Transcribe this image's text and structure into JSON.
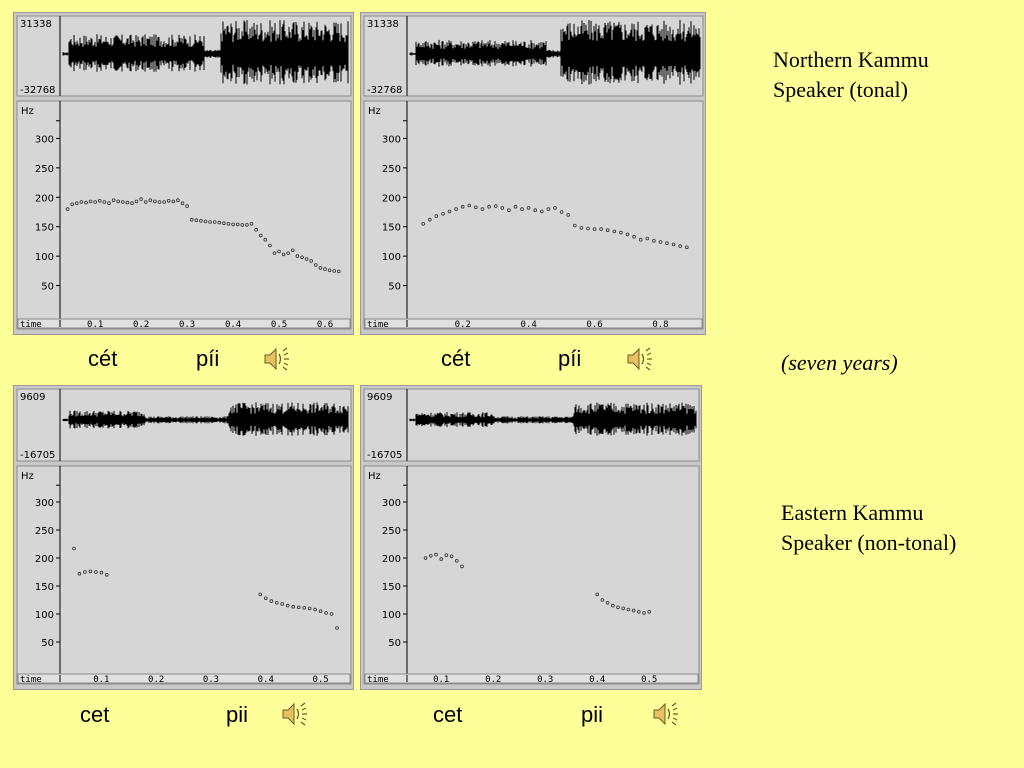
{
  "colors": {
    "background": "#ffff99",
    "panel": "#c8c8c8",
    "plot": "#d6d6d6",
    "trace": "#000000"
  },
  "labels": {
    "northern_line1": "Northern Kammu",
    "northern_line2": "Speaker (tonal)",
    "seven_years": "(seven years)",
    "eastern_line1": "Eastern Kammu",
    "eastern_line2": "Speaker (non-tonal)"
  },
  "captions": {
    "p1_w1": "cét",
    "p1_w2": "píi",
    "p2_w1": "cét",
    "p2_w2": "píi",
    "p3_w1": "cet",
    "p3_w2": "pii",
    "p4_w1": "cet",
    "p4_w2": "pii"
  },
  "icons": {
    "sound": "speaker-sound-icon"
  },
  "chart_data": [
    {
      "type": "scatter",
      "waveform": {
        "max_label": "31338",
        "min_label": "-32768"
      },
      "ylabel": "Hz",
      "xlabel": "time",
      "yticks": [
        300,
        250,
        200,
        150,
        100,
        50
      ],
      "ylim": [
        0,
        350
      ],
      "xticks": [
        0.1,
        0.2,
        0.3,
        0.4,
        0.5,
        0.6
      ],
      "xlim": [
        0.03,
        0.65
      ],
      "series": [
        {
          "x": [
            0.04,
            0.05,
            0.06,
            0.07,
            0.08,
            0.09,
            0.1,
            0.11,
            0.12,
            0.13,
            0.14,
            0.15,
            0.16,
            0.17,
            0.18,
            0.19,
            0.2,
            0.21,
            0.22,
            0.23,
            0.24,
            0.25,
            0.26,
            0.27,
            0.28,
            0.29,
            0.3,
            0.31,
            0.32,
            0.33,
            0.34,
            0.35,
            0.36,
            0.37,
            0.38,
            0.39,
            0.4,
            0.41,
            0.42,
            0.43,
            0.44,
            0.45,
            0.46,
            0.47,
            0.48,
            0.49,
            0.5,
            0.51,
            0.52,
            0.53,
            0.54,
            0.55,
            0.56,
            0.57,
            0.58,
            0.59,
            0.6,
            0.61,
            0.62,
            0.63
          ],
          "y": [
            180,
            188,
            190,
            192,
            191,
            193,
            192,
            194,
            192,
            190,
            195,
            193,
            192,
            191,
            190,
            193,
            197,
            192,
            195,
            193,
            192,
            192,
            194,
            193,
            195,
            190,
            185,
            162,
            161,
            160,
            159,
            158,
            158,
            157,
            156,
            155,
            154,
            154,
            153,
            153,
            155,
            145,
            135,
            128,
            118,
            105,
            108,
            103,
            105,
            110,
            100,
            98,
            95,
            92,
            85,
            80,
            78,
            76,
            75,
            74
          ]
        }
      ]
    },
    {
      "type": "scatter",
      "waveform": {
        "max_label": "31338",
        "min_label": "-32768"
      },
      "ylabel": "Hz",
      "xlabel": "time",
      "yticks": [
        300,
        250,
        200,
        150,
        100,
        50
      ],
      "ylim": [
        0,
        350
      ],
      "xticks": [
        0.2,
        0.4,
        0.6,
        0.8
      ],
      "xlim": [
        0.04,
        0.92
      ],
      "series": [
        {
          "x": [
            0.08,
            0.1,
            0.12,
            0.14,
            0.16,
            0.18,
            0.2,
            0.22,
            0.24,
            0.26,
            0.28,
            0.3,
            0.32,
            0.34,
            0.36,
            0.38,
            0.4,
            0.42,
            0.44,
            0.46,
            0.48,
            0.5,
            0.52,
            0.54,
            0.56,
            0.58,
            0.6,
            0.62,
            0.64,
            0.66,
            0.68,
            0.7,
            0.72,
            0.74,
            0.76,
            0.78,
            0.8,
            0.82,
            0.84,
            0.86,
            0.88
          ],
          "y": [
            155,
            162,
            168,
            172,
            176,
            180,
            184,
            186,
            183,
            180,
            184,
            185,
            182,
            178,
            184,
            180,
            182,
            178,
            176,
            180,
            182,
            175,
            170,
            152,
            148,
            147,
            146,
            146,
            144,
            142,
            140,
            137,
            133,
            128,
            130,
            126,
            124,
            122,
            120,
            117,
            115
          ]
        }
      ]
    },
    {
      "type": "scatter",
      "waveform": {
        "max_label": "9609",
        "min_label": "-16705"
      },
      "ylabel": "Hz",
      "xlabel": "time",
      "yticks": [
        300,
        250,
        200,
        150,
        100,
        50
      ],
      "ylim": [
        0,
        350
      ],
      "xticks": [
        0.1,
        0.2,
        0.3,
        0.4,
        0.5
      ],
      "xlim": [
        0.03,
        0.55
      ],
      "series": [
        {
          "x": [
            0.05,
            0.06,
            0.07,
            0.08,
            0.09,
            0.1,
            0.11,
            0.39,
            0.4,
            0.41,
            0.42,
            0.43,
            0.44,
            0.45,
            0.46,
            0.47,
            0.48,
            0.49,
            0.5,
            0.51,
            0.52,
            0.53
          ],
          "y": [
            217,
            172,
            175,
            176,
            175,
            174,
            170,
            135,
            128,
            123,
            120,
            118,
            115,
            113,
            112,
            111,
            110,
            108,
            105,
            102,
            100,
            75
          ]
        }
      ]
    },
    {
      "type": "scatter",
      "waveform": {
        "max_label": "9609",
        "min_label": "-16705"
      },
      "ylabel": "Hz",
      "xlabel": "time",
      "yticks": [
        300,
        250,
        200,
        150,
        100,
        50
      ],
      "ylim": [
        0,
        350
      ],
      "xticks": [
        0.1,
        0.2,
        0.3,
        0.4,
        0.5
      ],
      "xlim": [
        0.04,
        0.59
      ],
      "series": [
        {
          "x": [
            0.07,
            0.08,
            0.09,
            0.1,
            0.11,
            0.12,
            0.13,
            0.14,
            0.4,
            0.41,
            0.42,
            0.43,
            0.44,
            0.45,
            0.46,
            0.47,
            0.48,
            0.49,
            0.5
          ],
          "y": [
            200,
            204,
            206,
            198,
            205,
            203,
            195,
            185,
            135,
            125,
            120,
            115,
            112,
            110,
            108,
            106,
            104,
            102,
            104
          ]
        }
      ]
    }
  ]
}
